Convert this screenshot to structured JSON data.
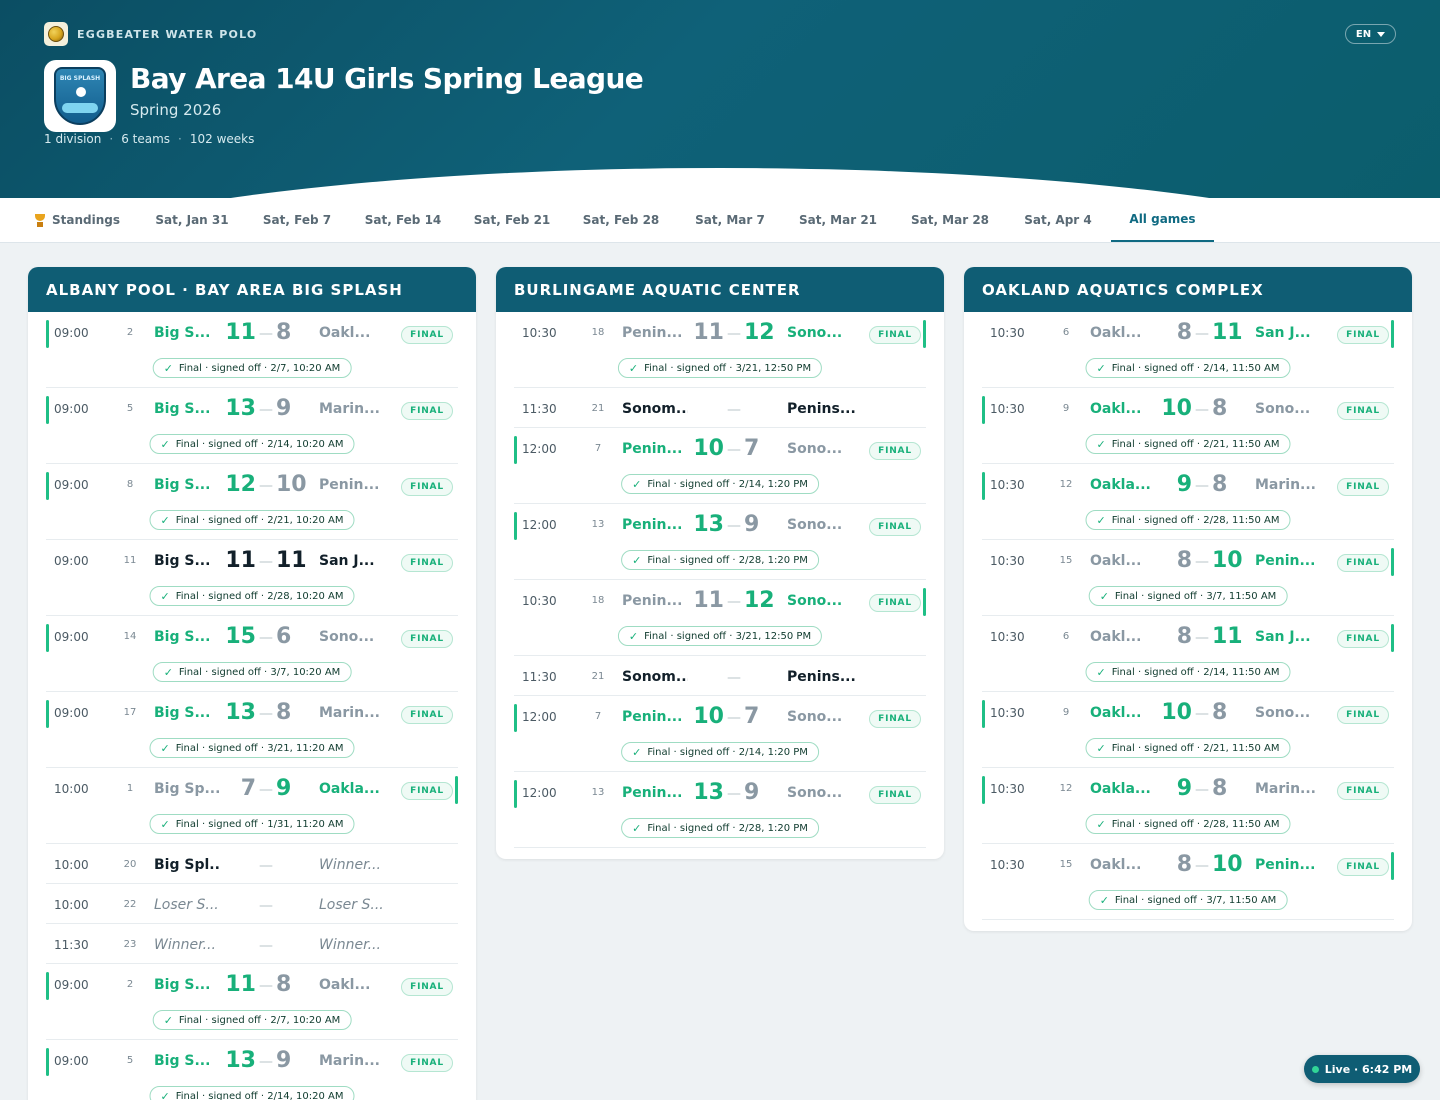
{
  "brand": {
    "name": "EGGBEATER WATER POLO",
    "logo_icon": "water-polo-ball-icon"
  },
  "language": {
    "label": "EN"
  },
  "league": {
    "badge_text": "BIG SPLASH",
    "title": "Bay Area 14U Girls Spring League",
    "season": "Spring 2026",
    "meta": [
      "1 division",
      "6 teams",
      "102 weeks"
    ]
  },
  "tabs": [
    {
      "label": "Standings",
      "icon": "trophy-icon"
    },
    {
      "label": "Sat, Jan 31"
    },
    {
      "label": "Sat, Feb 7"
    },
    {
      "label": "Sat, Feb 14"
    },
    {
      "label": "Sat, Feb 21"
    },
    {
      "label": "Sat, Feb 28"
    },
    {
      "label": "Sat, Mar 7"
    },
    {
      "label": "Sat, Mar 21"
    },
    {
      "label": "Sat, Mar 28"
    },
    {
      "label": "Sat, Apr 4"
    },
    {
      "label": "All games",
      "active": true
    }
  ],
  "colors": {
    "accent": "#0f5d74",
    "win": "#18b07a",
    "lose": "#8a98a3"
  },
  "venues": [
    {
      "name": "ALBANY POOL · BAY AREA BIG SPLASH",
      "games": [
        {
          "time": "09:00",
          "week": "2",
          "home": "Big S...",
          "hs": "11",
          "as": "8",
          "away": "Oakl...",
          "result": "home",
          "status": "FINAL",
          "signoff": "Final · signed off · 2/7, 10:20 AM",
          "bar": "left"
        },
        {
          "time": "09:00",
          "week": "5",
          "home": "Big S...",
          "hs": "13",
          "as": "9",
          "away": "Marin...",
          "result": "home",
          "status": "FINAL",
          "signoff": "Final · signed off · 2/14, 10:20 AM",
          "bar": "left"
        },
        {
          "time": "09:00",
          "week": "8",
          "home": "Big S...",
          "hs": "12",
          "as": "10",
          "away": "Penin...",
          "result": "home",
          "status": "FINAL",
          "signoff": "Final · signed off · 2/21, 10:20 AM",
          "bar": "left"
        },
        {
          "time": "09:00",
          "week": "11",
          "home": "Big S...",
          "hs": "11",
          "as": "11",
          "away": "San J...",
          "result": "tie",
          "status": "FINAL",
          "signoff": "Final · signed off · 2/28, 10:20 AM",
          "bar": "none"
        },
        {
          "time": "09:00",
          "week": "14",
          "home": "Big S...",
          "hs": "15",
          "as": "6",
          "away": "Sono...",
          "result": "home",
          "status": "FINAL",
          "signoff": "Final · signed off · 3/7, 10:20 AM",
          "bar": "left"
        },
        {
          "time": "09:00",
          "week": "17",
          "home": "Big S...",
          "hs": "13",
          "as": "8",
          "away": "Marin...",
          "result": "home",
          "status": "FINAL",
          "signoff": "Final · signed off · 3/21, 11:20 AM",
          "bar": "left"
        },
        {
          "time": "10:00",
          "week": "1",
          "home": "Big Sp...",
          "hs": "7",
          "as": "9",
          "away": "Oakla...",
          "result": "away",
          "status": "FINAL",
          "signoff": "Final · signed off · 1/31, 11:20 AM",
          "bar": "right"
        },
        {
          "time": "10:00",
          "week": "20",
          "home": "Big Spl...",
          "away": "Winner...",
          "result": "pending",
          "home_style": "plain",
          "away_style": "tbd"
        },
        {
          "time": "10:00",
          "week": "22",
          "home": "Loser S...",
          "away": "Loser S...",
          "result": "pending",
          "home_style": "tbd",
          "away_style": "tbd"
        },
        {
          "time": "11:30",
          "week": "23",
          "home": "Winner...",
          "away": "Winner...",
          "result": "pending",
          "home_style": "tbd",
          "away_style": "tbd"
        },
        {
          "time": "09:00",
          "week": "2",
          "home": "Big S...",
          "hs": "11",
          "as": "8",
          "away": "Oakl...",
          "result": "home",
          "status": "FINAL",
          "signoff": "Final · signed off · 2/7, 10:20 AM",
          "bar": "left"
        },
        {
          "time": "09:00",
          "week": "5",
          "home": "Big S...",
          "hs": "13",
          "as": "9",
          "away": "Marin...",
          "result": "home",
          "status": "FINAL",
          "signoff": "Final · signed off · 2/14, 10:20 AM",
          "bar": "left"
        }
      ]
    },
    {
      "name": "BURLINGAME AQUATIC CENTER",
      "games": [
        {
          "time": "10:30",
          "week": "18",
          "home": "Penin...",
          "hs": "11",
          "as": "12",
          "away": "Sono...",
          "result": "away",
          "status": "FINAL",
          "signoff": "Final · signed off · 3/21, 12:50 PM",
          "bar": "right"
        },
        {
          "time": "11:30",
          "week": "21",
          "home": "Sonom...",
          "away": "Penins...",
          "result": "pending",
          "home_style": "plain",
          "away_style": "plain"
        },
        {
          "time": "12:00",
          "week": "7",
          "home": "Penin...",
          "hs": "10",
          "as": "7",
          "away": "Sono...",
          "result": "home",
          "status": "FINAL",
          "signoff": "Final · signed off · 2/14, 1:20 PM",
          "bar": "left"
        },
        {
          "time": "12:00",
          "week": "13",
          "home": "Penin...",
          "hs": "13",
          "as": "9",
          "away": "Sono...",
          "result": "home",
          "status": "FINAL",
          "signoff": "Final · signed off · 2/28, 1:20 PM",
          "bar": "left"
        },
        {
          "time": "10:30",
          "week": "18",
          "home": "Penin...",
          "hs": "11",
          "as": "12",
          "away": "Sono...",
          "result": "away",
          "status": "FINAL",
          "signoff": "Final · signed off · 3/21, 12:50 PM",
          "bar": "right"
        },
        {
          "time": "11:30",
          "week": "21",
          "home": "Sonom...",
          "away": "Penins...",
          "result": "pending",
          "home_style": "plain",
          "away_style": "plain"
        },
        {
          "time": "12:00",
          "week": "7",
          "home": "Penin...",
          "hs": "10",
          "as": "7",
          "away": "Sono...",
          "result": "home",
          "status": "FINAL",
          "signoff": "Final · signed off · 2/14, 1:20 PM",
          "bar": "left"
        },
        {
          "time": "12:00",
          "week": "13",
          "home": "Penin...",
          "hs": "13",
          "as": "9",
          "away": "Sono...",
          "result": "home",
          "status": "FINAL",
          "signoff": "Final · signed off · 2/28, 1:20 PM",
          "bar": "left"
        }
      ]
    },
    {
      "name": "OAKLAND AQUATICS COMPLEX",
      "games": [
        {
          "time": "10:30",
          "week": "6",
          "home": "Oakl...",
          "hs": "8",
          "as": "11",
          "away": "San J...",
          "result": "away",
          "status": "FINAL",
          "signoff": "Final · signed off · 2/14, 11:50 AM",
          "bar": "right"
        },
        {
          "time": "10:30",
          "week": "9",
          "home": "Oakl...",
          "hs": "10",
          "as": "8",
          "away": "Sono...",
          "result": "home",
          "status": "FINAL",
          "signoff": "Final · signed off · 2/21, 11:50 AM",
          "bar": "left"
        },
        {
          "time": "10:30",
          "week": "12",
          "home": "Oakla...",
          "hs": "9",
          "as": "8",
          "away": "Marin...",
          "result": "home",
          "status": "FINAL",
          "signoff": "Final · signed off · 2/28, 11:50 AM",
          "bar": "left"
        },
        {
          "time": "10:30",
          "week": "15",
          "home": "Oakl...",
          "hs": "8",
          "as": "10",
          "away": "Penin...",
          "result": "away",
          "status": "FINAL",
          "signoff": "Final · signed off · 3/7, 11:50 AM",
          "bar": "right"
        },
        {
          "time": "10:30",
          "week": "6",
          "home": "Oakl...",
          "hs": "8",
          "as": "11",
          "away": "San J...",
          "result": "away",
          "status": "FINAL",
          "signoff": "Final · signed off · 2/14, 11:50 AM",
          "bar": "right"
        },
        {
          "time": "10:30",
          "week": "9",
          "home": "Oakl...",
          "hs": "10",
          "as": "8",
          "away": "Sono...",
          "result": "home",
          "status": "FINAL",
          "signoff": "Final · signed off · 2/21, 11:50 AM",
          "bar": "left"
        },
        {
          "time": "10:30",
          "week": "12",
          "home": "Oakla...",
          "hs": "9",
          "as": "8",
          "away": "Marin...",
          "result": "home",
          "status": "FINAL",
          "signoff": "Final · signed off · 2/28, 11:50 AM",
          "bar": "left"
        },
        {
          "time": "10:30",
          "week": "15",
          "home": "Oakl...",
          "hs": "8",
          "as": "10",
          "away": "Penin...",
          "result": "away",
          "status": "FINAL",
          "signoff": "Final · signed off · 3/7, 11:50 AM",
          "bar": "right"
        }
      ]
    }
  ],
  "score_dash": "—",
  "live_status": {
    "label": "Live · 6:42 PM"
  }
}
